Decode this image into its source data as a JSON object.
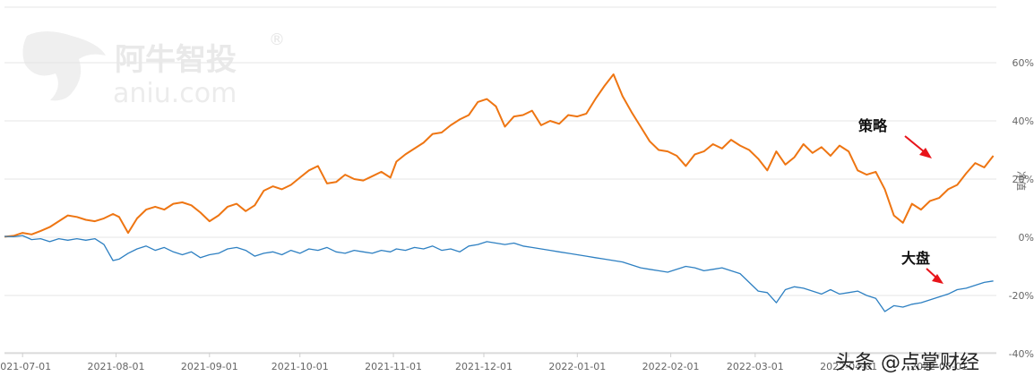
{
  "watermark": {
    "brand": "阿牛智投",
    "domain": "aniu.com",
    "registered": "®"
  },
  "source_watermark": "头条 @点掌财经",
  "colors": {
    "strategy": "#ee7512",
    "market": "#2e80c2",
    "arrow": "#e8141a",
    "grid": "#e6e6e6"
  },
  "chart_data": {
    "type": "line",
    "title": "",
    "xlabel": "",
    "ylabel": "净值",
    "y_unit": "%",
    "ylim": [
      -40,
      80
    ],
    "yticks": [
      60,
      40,
      20,
      0,
      -20,
      -40
    ],
    "ytick_labels": [
      "60%",
      "40%",
      "20%",
      "0%",
      "-20%",
      "-40%"
    ],
    "x_range": [
      "2021-06-25",
      "2022-05-20"
    ],
    "xticks": [
      "2021-07-01",
      "2021-08-01",
      "2021-09-01",
      "2021-10-01",
      "2021-11-01",
      "2021-12-01",
      "2022-01-01",
      "2022-02-01",
      "2022-03-01",
      "2022-04-01",
      "2022-05-01"
    ],
    "grid": true,
    "series": [
      {
        "name": "策略",
        "color": "#ee7512",
        "points": [
          [
            "2021-06-25",
            0.2
          ],
          [
            "2021-06-28",
            0.5
          ],
          [
            "2021-07-01",
            1.5
          ],
          [
            "2021-07-04",
            1.0
          ],
          [
            "2021-07-07",
            2.2
          ],
          [
            "2021-07-10",
            3.5
          ],
          [
            "2021-07-13",
            5.5
          ],
          [
            "2021-07-16",
            7.5
          ],
          [
            "2021-07-19",
            7.0
          ],
          [
            "2021-07-22",
            6.0
          ],
          [
            "2021-07-25",
            5.5
          ],
          [
            "2021-07-28",
            6.5
          ],
          [
            "2021-07-31",
            8.0
          ],
          [
            "2021-08-02",
            7.0
          ],
          [
            "2021-08-05",
            1.5
          ],
          [
            "2021-08-08",
            6.5
          ],
          [
            "2021-08-11",
            9.5
          ],
          [
            "2021-08-14",
            10.5
          ],
          [
            "2021-08-17",
            9.5
          ],
          [
            "2021-08-20",
            11.5
          ],
          [
            "2021-08-23",
            12.0
          ],
          [
            "2021-08-26",
            11.0
          ],
          [
            "2021-08-29",
            8.5
          ],
          [
            "2021-09-01",
            5.5
          ],
          [
            "2021-09-04",
            7.5
          ],
          [
            "2021-09-07",
            10.5
          ],
          [
            "2021-09-10",
            11.5
          ],
          [
            "2021-09-13",
            9.0
          ],
          [
            "2021-09-16",
            11.0
          ],
          [
            "2021-09-19",
            16.0
          ],
          [
            "2021-09-22",
            17.5
          ],
          [
            "2021-09-25",
            16.5
          ],
          [
            "2021-09-28",
            18.0
          ],
          [
            "2021-10-01",
            20.5
          ],
          [
            "2021-10-04",
            23.0
          ],
          [
            "2021-10-07",
            24.5
          ],
          [
            "2021-10-10",
            18.5
          ],
          [
            "2021-10-13",
            19.0
          ],
          [
            "2021-10-16",
            21.5
          ],
          [
            "2021-10-19",
            20.0
          ],
          [
            "2021-10-22",
            19.5
          ],
          [
            "2021-10-25",
            21.0
          ],
          [
            "2021-10-28",
            22.5
          ],
          [
            "2021-10-31",
            20.5
          ],
          [
            "2021-11-02",
            26.0
          ],
          [
            "2021-11-05",
            28.5
          ],
          [
            "2021-11-08",
            30.5
          ],
          [
            "2021-11-11",
            32.5
          ],
          [
            "2021-11-14",
            35.5
          ],
          [
            "2021-11-17",
            36.0
          ],
          [
            "2021-11-20",
            38.5
          ],
          [
            "2021-11-23",
            40.5
          ],
          [
            "2021-11-26",
            42.0
          ],
          [
            "2021-11-29",
            46.5
          ],
          [
            "2021-12-02",
            47.5
          ],
          [
            "2021-12-05",
            45.0
          ],
          [
            "2021-12-08",
            38.0
          ],
          [
            "2021-12-11",
            41.5
          ],
          [
            "2021-12-14",
            42.0
          ],
          [
            "2021-12-17",
            43.5
          ],
          [
            "2021-12-20",
            38.5
          ],
          [
            "2021-12-23",
            40.0
          ],
          [
            "2021-12-26",
            39.0
          ],
          [
            "2021-12-29",
            42.0
          ],
          [
            "2022-01-01",
            41.5
          ],
          [
            "2022-01-04",
            42.5
          ],
          [
            "2022-01-07",
            47.5
          ],
          [
            "2022-01-10",
            52.0
          ],
          [
            "2022-01-13",
            56.0
          ],
          [
            "2022-01-16",
            48.5
          ],
          [
            "2022-01-19",
            43.0
          ],
          [
            "2022-01-22",
            38.0
          ],
          [
            "2022-01-25",
            33.0
          ],
          [
            "2022-01-28",
            30.0
          ],
          [
            "2022-01-31",
            29.5
          ],
          [
            "2022-02-03",
            28.0
          ],
          [
            "2022-02-06",
            24.5
          ],
          [
            "2022-02-09",
            28.5
          ],
          [
            "2022-02-12",
            29.5
          ],
          [
            "2022-02-15",
            32.0
          ],
          [
            "2022-02-18",
            30.5
          ],
          [
            "2022-02-21",
            33.5
          ],
          [
            "2022-02-24",
            31.5
          ],
          [
            "2022-02-27",
            30.0
          ],
          [
            "2022-03-02",
            27.0
          ],
          [
            "2022-03-05",
            23.0
          ],
          [
            "2022-03-08",
            29.5
          ],
          [
            "2022-03-11",
            25.0
          ],
          [
            "2022-03-14",
            27.5
          ],
          [
            "2022-03-17",
            32.0
          ],
          [
            "2022-03-20",
            29.0
          ],
          [
            "2022-03-23",
            31.0
          ],
          [
            "2022-03-26",
            28.0
          ],
          [
            "2022-03-29",
            31.5
          ],
          [
            "2022-04-01",
            29.5
          ],
          [
            "2022-04-04",
            23.0
          ],
          [
            "2022-04-07",
            21.5
          ],
          [
            "2022-04-10",
            22.5
          ],
          [
            "2022-04-13",
            16.5
          ],
          [
            "2022-04-16",
            7.5
          ],
          [
            "2022-04-19",
            5.0
          ],
          [
            "2022-04-22",
            11.5
          ],
          [
            "2022-04-25",
            9.5
          ],
          [
            "2022-04-28",
            12.5
          ],
          [
            "2022-05-01",
            13.5
          ],
          [
            "2022-05-04",
            16.5
          ],
          [
            "2022-05-07",
            18.0
          ],
          [
            "2022-05-10",
            22.0
          ],
          [
            "2022-05-13",
            25.5
          ],
          [
            "2022-05-16",
            24.0
          ],
          [
            "2022-05-19",
            28.0
          ]
        ]
      },
      {
        "name": "大盘",
        "color": "#2e80c2",
        "points": [
          [
            "2021-06-25",
            0.3
          ],
          [
            "2021-06-28",
            0.2
          ],
          [
            "2021-07-01",
            0.6
          ],
          [
            "2021-07-04",
            -0.8
          ],
          [
            "2021-07-07",
            -0.5
          ],
          [
            "2021-07-10",
            -1.5
          ],
          [
            "2021-07-13",
            -0.5
          ],
          [
            "2021-07-16",
            -1.0
          ],
          [
            "2021-07-19",
            -0.5
          ],
          [
            "2021-07-22",
            -1.0
          ],
          [
            "2021-07-25",
            -0.5
          ],
          [
            "2021-07-28",
            -2.5
          ],
          [
            "2021-07-31",
            -8.0
          ],
          [
            "2021-08-02",
            -7.5
          ],
          [
            "2021-08-05",
            -5.5
          ],
          [
            "2021-08-08",
            -4.0
          ],
          [
            "2021-08-11",
            -3.0
          ],
          [
            "2021-08-14",
            -4.5
          ],
          [
            "2021-08-17",
            -3.5
          ],
          [
            "2021-08-20",
            -5.0
          ],
          [
            "2021-08-23",
            -6.0
          ],
          [
            "2021-08-26",
            -5.0
          ],
          [
            "2021-08-29",
            -7.0
          ],
          [
            "2021-09-01",
            -6.0
          ],
          [
            "2021-09-04",
            -5.5
          ],
          [
            "2021-09-07",
            -4.0
          ],
          [
            "2021-09-10",
            -3.5
          ],
          [
            "2021-09-13",
            -4.5
          ],
          [
            "2021-09-16",
            -6.5
          ],
          [
            "2021-09-19",
            -5.5
          ],
          [
            "2021-09-22",
            -5.0
          ],
          [
            "2021-09-25",
            -6.0
          ],
          [
            "2021-09-28",
            -4.5
          ],
          [
            "2021-10-01",
            -5.5
          ],
          [
            "2021-10-04",
            -4.0
          ],
          [
            "2021-10-07",
            -4.5
          ],
          [
            "2021-10-10",
            -3.5
          ],
          [
            "2021-10-13",
            -5.0
          ],
          [
            "2021-10-16",
            -5.5
          ],
          [
            "2021-10-19",
            -4.5
          ],
          [
            "2021-10-22",
            -5.0
          ],
          [
            "2021-10-25",
            -5.5
          ],
          [
            "2021-10-28",
            -4.5
          ],
          [
            "2021-10-31",
            -5.0
          ],
          [
            "2021-11-02",
            -4.0
          ],
          [
            "2021-11-05",
            -4.5
          ],
          [
            "2021-11-08",
            -3.5
          ],
          [
            "2021-11-11",
            -4.0
          ],
          [
            "2021-11-14",
            -3.0
          ],
          [
            "2021-11-17",
            -4.5
          ],
          [
            "2021-11-20",
            -4.0
          ],
          [
            "2021-11-23",
            -5.0
          ],
          [
            "2021-11-26",
            -3.0
          ],
          [
            "2021-11-29",
            -2.5
          ],
          [
            "2021-12-02",
            -1.5
          ],
          [
            "2021-12-05",
            -2.0
          ],
          [
            "2021-12-08",
            -2.5
          ],
          [
            "2021-12-11",
            -2.0
          ],
          [
            "2021-12-14",
            -3.0
          ],
          [
            "2021-12-17",
            -3.5
          ],
          [
            "2021-12-20",
            -4.0
          ],
          [
            "2021-12-23",
            -4.5
          ],
          [
            "2021-12-26",
            -5.0
          ],
          [
            "2021-12-29",
            -5.5
          ],
          [
            "2022-01-01",
            -6.0
          ],
          [
            "2022-01-04",
            -6.5
          ],
          [
            "2022-01-07",
            -7.0
          ],
          [
            "2022-01-10",
            -7.5
          ],
          [
            "2022-01-13",
            -8.0
          ],
          [
            "2022-01-16",
            -8.5
          ],
          [
            "2022-01-19",
            -9.5
          ],
          [
            "2022-01-22",
            -10.5
          ],
          [
            "2022-01-25",
            -11.0
          ],
          [
            "2022-01-28",
            -11.5
          ],
          [
            "2022-01-31",
            -12.0
          ],
          [
            "2022-02-03",
            -11.0
          ],
          [
            "2022-02-06",
            -10.0
          ],
          [
            "2022-02-09",
            -10.5
          ],
          [
            "2022-02-12",
            -11.5
          ],
          [
            "2022-02-15",
            -11.0
          ],
          [
            "2022-02-18",
            -10.5
          ],
          [
            "2022-02-21",
            -11.5
          ],
          [
            "2022-02-24",
            -12.5
          ],
          [
            "2022-02-27",
            -15.5
          ],
          [
            "2022-03-02",
            -18.5
          ],
          [
            "2022-03-05",
            -19.0
          ],
          [
            "2022-03-08",
            -22.5
          ],
          [
            "2022-03-11",
            -18.0
          ],
          [
            "2022-03-14",
            -17.0
          ],
          [
            "2022-03-17",
            -17.5
          ],
          [
            "2022-03-20",
            -18.5
          ],
          [
            "2022-03-23",
            -19.5
          ],
          [
            "2022-03-26",
            -18.0
          ],
          [
            "2022-03-29",
            -19.5
          ],
          [
            "2022-04-01",
            -19.0
          ],
          [
            "2022-04-04",
            -18.5
          ],
          [
            "2022-04-07",
            -20.0
          ],
          [
            "2022-04-10",
            -21.0
          ],
          [
            "2022-04-13",
            -25.5
          ],
          [
            "2022-04-16",
            -23.5
          ],
          [
            "2022-04-19",
            -24.0
          ],
          [
            "2022-04-22",
            -23.0
          ],
          [
            "2022-04-25",
            -22.5
          ],
          [
            "2022-04-28",
            -21.5
          ],
          [
            "2022-05-01",
            -20.5
          ],
          [
            "2022-05-04",
            -19.5
          ],
          [
            "2022-05-07",
            -18.0
          ],
          [
            "2022-05-10",
            -17.5
          ],
          [
            "2022-05-13",
            -16.5
          ],
          [
            "2022-05-16",
            -15.5
          ],
          [
            "2022-05-19",
            -15.0
          ]
        ]
      }
    ],
    "annotations": [
      {
        "text": "策略",
        "series": "策略"
      },
      {
        "text": "大盘",
        "series": "大盘"
      }
    ]
  }
}
